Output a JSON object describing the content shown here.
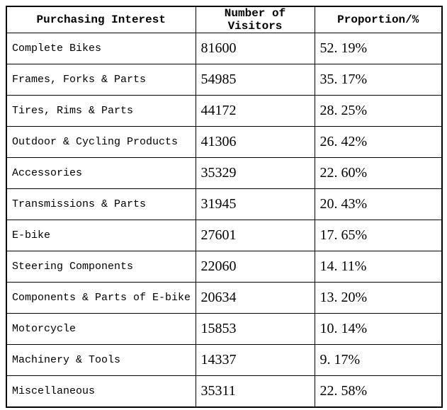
{
  "colors": {
    "background": "#ffffff",
    "border": "#000000",
    "text": "#000000"
  },
  "table": {
    "headers": {
      "interest": "Purchasing Interest",
      "visitors": "Number of Visitors",
      "proportion": "Proportion/%"
    },
    "rows": [
      {
        "interest": "Complete Bikes",
        "visitors": "81600",
        "proportion": "52. 19%"
      },
      {
        "interest": "Frames, Forks & Parts",
        "visitors": "54985",
        "proportion": "35. 17%"
      },
      {
        "interest": "Tires, Rims & Parts",
        "visitors": "44172",
        "proportion": "28. 25%"
      },
      {
        "interest": "Outdoor & Cycling Products",
        "visitors": "41306",
        "proportion": "26. 42%"
      },
      {
        "interest": "Accessories",
        "visitors": "35329",
        "proportion": "22. 60%"
      },
      {
        "interest": "Transmissions & Parts",
        "visitors": "31945",
        "proportion": "20. 43%"
      },
      {
        "interest": "E-bike",
        "visitors": "27601",
        "proportion": "17. 65%"
      },
      {
        "interest": "Steering Components",
        "visitors": "22060",
        "proportion": "14. 11%"
      },
      {
        "interest": "Components & Parts of E-bike",
        "visitors": "20634",
        "proportion": "13. 20%"
      },
      {
        "interest": "Motorcycle",
        "visitors": "15853",
        "proportion": "10. 14%"
      },
      {
        "interest": "Machinery & Tools",
        "visitors": "14337",
        "proportion": "9. 17%"
      },
      {
        "interest": "Miscellaneous",
        "visitors": "35311",
        "proportion": "22. 58%"
      }
    ]
  },
  "chart_data": {
    "type": "table",
    "title": "",
    "columns": [
      "Purchasing Interest",
      "Number of Visitors",
      "Proportion/%"
    ],
    "categories": [
      "Complete Bikes",
      "Frames, Forks & Parts",
      "Tires, Rims & Parts",
      "Outdoor & Cycling Products",
      "Accessories",
      "Transmissions & Parts",
      "E-bike",
      "Steering Components",
      "Components & Parts of E-bike",
      "Motorcycle",
      "Machinery & Tools",
      "Miscellaneous"
    ],
    "series": [
      {
        "name": "Number of Visitors",
        "values": [
          81600,
          54985,
          44172,
          41306,
          35329,
          31945,
          27601,
          22060,
          20634,
          15853,
          14337,
          35311
        ]
      },
      {
        "name": "Proportion/%",
        "values": [
          52.19,
          35.17,
          28.25,
          26.42,
          22.6,
          20.43,
          17.65,
          14.11,
          13.2,
          10.14,
          9.17,
          22.58
        ]
      }
    ],
    "layout_hints": {
      "grid": "full-borders",
      "header_style": "bold-centered",
      "body_align": "left"
    }
  }
}
